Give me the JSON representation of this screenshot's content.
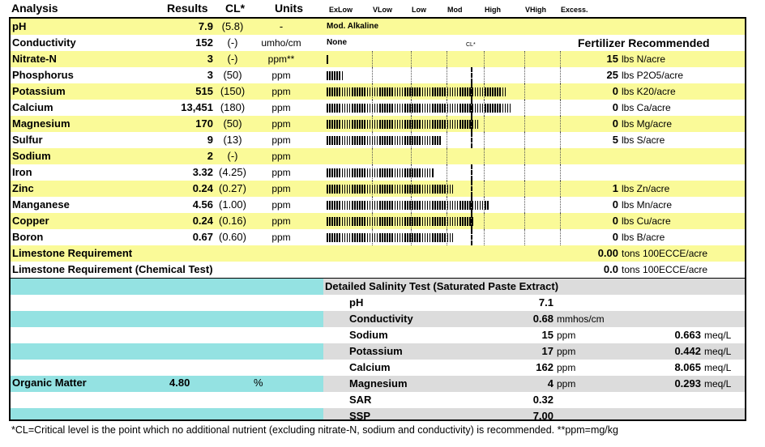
{
  "header": {
    "analysis": "Analysis",
    "results": "Results",
    "cl": "CL*",
    "units": "Units",
    "levels": [
      "ExLow",
      "VLow",
      "Low",
      "Mod",
      "High",
      "VHigh",
      "Excess."
    ]
  },
  "ph_row": {
    "name": "pH",
    "result": "7.9",
    "cl": "(5.8)",
    "unit": "-",
    "note": "Mod. Alkaline"
  },
  "cond_row": {
    "name": "Conductivity",
    "result": "152",
    "cl": "(-)",
    "unit": "umho/cm",
    "note": "None",
    "cl_marker": "CL*",
    "fert_title": "Fertilizer Recommended"
  },
  "nutrients": [
    {
      "name": "Nitrate-N",
      "result": "3",
      "cl": "(-)",
      "unit": "ppm**",
      "bars": 1,
      "rec_val": "15",
      "rec_unit": "lbs N/acre"
    },
    {
      "name": "Phosphorus",
      "result": "3",
      "cl": "(50)",
      "unit": "ppm",
      "bars": 7,
      "rec_val": "25",
      "rec_unit": "lbs P2O5/acre"
    },
    {
      "name": "Potassium",
      "result": "515",
      "cl": "(150)",
      "unit": "ppm",
      "bars": 72,
      "rec_val": "0",
      "rec_unit": "lbs K20/acre"
    },
    {
      "name": "Calcium",
      "result": "13,451",
      "cl": "(180)",
      "unit": "ppm",
      "bars": 74,
      "rec_val": "0",
      "rec_unit": "lbs Ca/acre"
    },
    {
      "name": "Magnesium",
      "result": "170",
      "cl": "(50)",
      "unit": "ppm",
      "bars": 61,
      "rec_val": "0",
      "rec_unit": "lbs Mg/acre"
    },
    {
      "name": "Sulfur",
      "result": "9",
      "cl": "(13)",
      "unit": "ppm",
      "bars": 46,
      "rec_val": "5",
      "rec_unit": "lbs S/acre"
    },
    {
      "name": "Sodium",
      "result": "2",
      "cl": "(-)",
      "unit": "ppm",
      "bars": 0,
      "rec_val": "",
      "rec_unit": ""
    },
    {
      "name": "Iron",
      "result": "3.32",
      "cl": "(4.25)",
      "unit": "ppm",
      "bars": 43,
      "rec_val": "",
      "rec_unit": ""
    },
    {
      "name": "Zinc",
      "result": "0.24",
      "cl": "(0.27)",
      "unit": "ppm",
      "bars": 51,
      "rec_val": "1",
      "rec_unit": "lbs Zn/acre"
    },
    {
      "name": "Manganese",
      "result": "4.56",
      "cl": "(1.00)",
      "unit": "ppm",
      "bars": 65,
      "rec_val": "0",
      "rec_unit": "lbs Mn/acre"
    },
    {
      "name": "Copper",
      "result": "0.24",
      "cl": "(0.16)",
      "unit": "ppm",
      "bars": 59,
      "rec_val": "0",
      "rec_unit": "lbs Cu/acre"
    },
    {
      "name": "Boron",
      "result": "0.67",
      "cl": "(0.60)",
      "unit": "ppm",
      "bars": 51,
      "rec_val": "0",
      "rec_unit": "lbs B/acre"
    }
  ],
  "limestone": {
    "label": "Limestone Requirement",
    "value": "0.00",
    "unit": "tons 100ECCE/acre"
  },
  "limestone_chem": {
    "label": "Limestone Requirement (Chemical Test)",
    "value": "0.0",
    "unit": "tons 100ECCE/acre"
  },
  "salinity": {
    "title": "Detailed Salinity Test (Saturated Paste Extract)",
    "rows": [
      {
        "name": "pH",
        "value": "7.1",
        "unit": "",
        "meq": "",
        "meq_unit": ""
      },
      {
        "name": "Conductivity",
        "value": "0.68",
        "unit": "mmhos/cm",
        "meq": "",
        "meq_unit": ""
      },
      {
        "name": "Sodium",
        "value": "15",
        "unit": "ppm",
        "meq": "0.663",
        "meq_unit": "meq/L"
      },
      {
        "name": "Potassium",
        "value": "17",
        "unit": "ppm",
        "meq": "0.442",
        "meq_unit": "meq/L"
      },
      {
        "name": "Calcium",
        "value": "162",
        "unit": "ppm",
        "meq": "8.065",
        "meq_unit": "meq/L"
      },
      {
        "name": "Magnesium",
        "value": "4",
        "unit": "ppm",
        "meq": "0.293",
        "meq_unit": "meq/L"
      },
      {
        "name": "SAR",
        "value": "0.32",
        "unit": "",
        "meq": "",
        "meq_unit": ""
      },
      {
        "name": "SSP",
        "value": "7.00",
        "unit": "",
        "meq": "",
        "meq_unit": ""
      }
    ]
  },
  "organic": {
    "label": "Organic Matter",
    "value": "4.80",
    "unit": "%"
  },
  "footnote": "*CL=Critical level is the point which no additional nutrient (excluding nitrate-N, sodium and conductivity) is recommended. **ppm=mg/kg"
}
